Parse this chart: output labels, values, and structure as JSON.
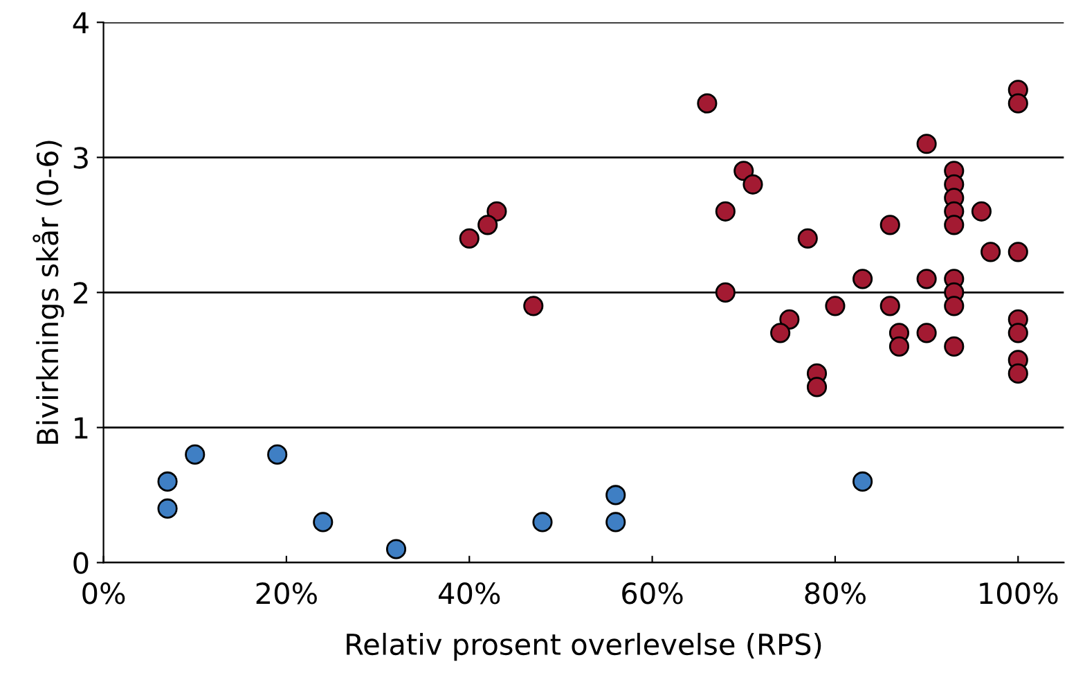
{
  "chart_data": {
    "type": "scatter",
    "xlabel": "Relativ prosent overlevelse (RPS)",
    "ylabel": "Bivirknings skår (0-6)",
    "xlim": [
      0,
      105
    ],
    "ylim": [
      0,
      4
    ],
    "xticks": [
      {
        "value": 0,
        "label": "0%"
      },
      {
        "value": 20,
        "label": "20%"
      },
      {
        "value": 40,
        "label": "40%"
      },
      {
        "value": 60,
        "label": "60%"
      },
      {
        "value": 80,
        "label": "80%"
      },
      {
        "value": 100,
        "label": "100%"
      }
    ],
    "yticks": [
      0,
      1,
      2,
      3,
      4
    ],
    "grid": "y",
    "marker": "circle",
    "series": [
      {
        "color": "#3f7fc4",
        "x": [
          7,
          7,
          10,
          19,
          24,
          32,
          48,
          56,
          56,
          83
        ],
        "values": [
          0.6,
          0.4,
          0.8,
          0.8,
          0.3,
          0.1,
          0.3,
          0.5,
          0.3,
          0.6
        ]
      },
      {
        "color": "#a31a32",
        "x": [
          66,
          100,
          100,
          90,
          70,
          71,
          93,
          93,
          93,
          93,
          93,
          68,
          96,
          86,
          77,
          97,
          100,
          68,
          83,
          90,
          93,
          93,
          93,
          80,
          86,
          75,
          74,
          87,
          87,
          90,
          93,
          100,
          100,
          100,
          100,
          78,
          78,
          43,
          42,
          40,
          47
        ],
        "values": [
          3.4,
          3.5,
          3.4,
          3.1,
          2.9,
          2.8,
          2.9,
          2.8,
          2.7,
          2.6,
          2.5,
          2.6,
          2.6,
          2.5,
          2.4,
          2.3,
          2.3,
          2.0,
          2.1,
          2.1,
          2.1,
          2.0,
          1.9,
          1.9,
          1.9,
          1.8,
          1.7,
          1.7,
          1.6,
          1.7,
          1.6,
          1.8,
          1.7,
          1.5,
          1.4,
          1.4,
          1.3,
          2.6,
          2.5,
          2.4,
          1.9
        ]
      }
    ]
  }
}
